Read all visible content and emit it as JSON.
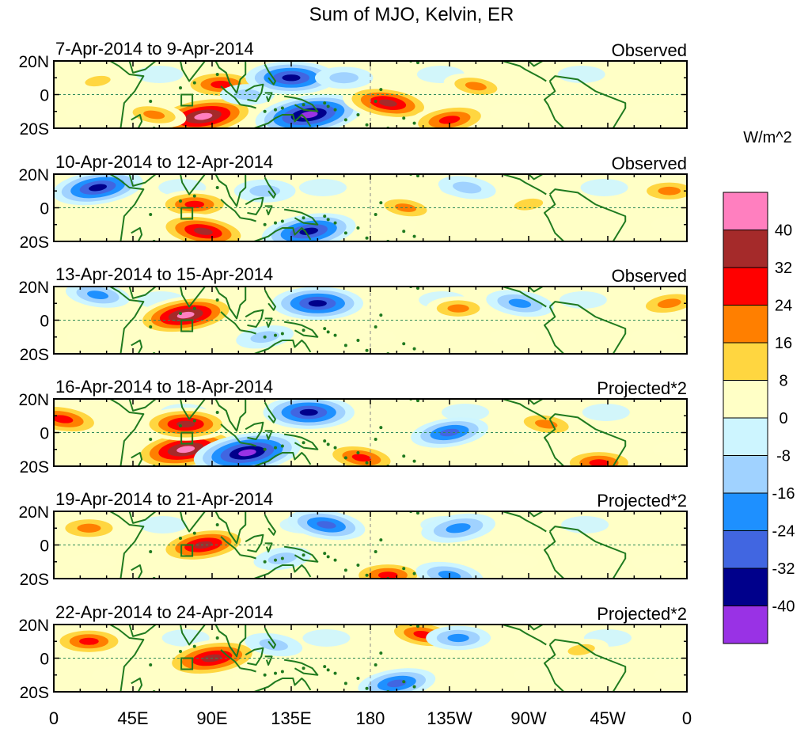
{
  "chart_data": {
    "type": "heatmap",
    "title": "Sum of MJO, Kelvin, ER",
    "units_label": "W/m^2",
    "lat_ticks": [
      "20N",
      "0",
      "20S"
    ],
    "lon_ticks": [
      "0",
      "45E",
      "90E",
      "135E",
      "180",
      "135W",
      "90W",
      "45W",
      "0"
    ],
    "lat_range": [
      -20,
      20
    ],
    "lon_range": [
      0,
      360
    ],
    "colorbar": {
      "labels": [
        "40",
        "32",
        "24",
        "16",
        "8",
        "0",
        "-8",
        "-16",
        "-24",
        "-32",
        "-40"
      ],
      "colors": [
        "#ff7fbf",
        "#a52a2a",
        "#ff0000",
        "#ff7f00",
        "#ffd640",
        "#ffffc6",
        "#cdf5ff",
        "#a0d2ff",
        "#1e90ff",
        "#4166e1",
        "#00008b",
        "#9932e5"
      ]
    },
    "panels": [
      {
        "date_range": "7-Apr-2014 to 9-Apr-2014",
        "type": "Observed",
        "features": [
          {
            "lon": 85,
            "lat": -13,
            "value": 45
          },
          {
            "lon": 95,
            "lat": 6,
            "value": 28
          },
          {
            "lon": 57,
            "lat": -12,
            "value": 18
          },
          {
            "lon": 145,
            "lat": -12,
            "value": -44
          },
          {
            "lon": 135,
            "lat": 10,
            "value": -34
          },
          {
            "lon": 190,
            "lat": -5,
            "value": 34
          },
          {
            "lon": 225,
            "lat": -15,
            "value": 30
          },
          {
            "lon": 165,
            "lat": 10,
            "value": -14
          },
          {
            "lon": 240,
            "lat": 5,
            "value": 18
          },
          {
            "lon": 25,
            "lat": 8,
            "value": 10
          },
          {
            "lon": 110,
            "lat": 0,
            "value": -12
          }
        ]
      },
      {
        "date_range": "10-Apr-2014 to 12-Apr-2014",
        "type": "Observed",
        "features": [
          {
            "lon": 25,
            "lat": 12,
            "value": -34
          },
          {
            "lon": 80,
            "lat": 2,
            "value": 26
          },
          {
            "lon": 85,
            "lat": -14,
            "value": 36
          },
          {
            "lon": 145,
            "lat": -14,
            "value": -36
          },
          {
            "lon": 120,
            "lat": 10,
            "value": -16
          },
          {
            "lon": 200,
            "lat": 0,
            "value": 18
          },
          {
            "lon": 270,
            "lat": 2,
            "value": 14
          },
          {
            "lon": 350,
            "lat": 10,
            "value": 20
          },
          {
            "lon": 235,
            "lat": 12,
            "value": -14
          }
        ]
      },
      {
        "date_range": "13-Apr-2014 to 15-Apr-2014",
        "type": "Observed",
        "features": [
          {
            "lon": 75,
            "lat": 3,
            "value": 42
          },
          {
            "lon": 150,
            "lat": 10,
            "value": -34
          },
          {
            "lon": 25,
            "lat": 15,
            "value": -18
          },
          {
            "lon": 120,
            "lat": -10,
            "value": -14
          },
          {
            "lon": 230,
            "lat": 7,
            "value": 18
          },
          {
            "lon": 265,
            "lat": 10,
            "value": -20
          },
          {
            "lon": 350,
            "lat": 10,
            "value": 22
          }
        ]
      },
      {
        "date_range": "16-Apr-2014 to 18-Apr-2014",
        "type": "Projected*2",
        "features": [
          {
            "lon": 75,
            "lat": -10,
            "value": 45
          },
          {
            "lon": 75,
            "lat": 5,
            "value": 34
          },
          {
            "lon": 5,
            "lat": 8,
            "value": 30
          },
          {
            "lon": 110,
            "lat": -12,
            "value": -44
          },
          {
            "lon": 145,
            "lat": 12,
            "value": -34
          },
          {
            "lon": 175,
            "lat": -15,
            "value": 26
          },
          {
            "lon": 225,
            "lat": 0,
            "value": -26
          },
          {
            "lon": 310,
            "lat": -18,
            "value": 26
          },
          {
            "lon": 280,
            "lat": 5,
            "value": 20
          }
        ]
      },
      {
        "date_range": "19-Apr-2014 to 21-Apr-2014",
        "type": "Projected*2",
        "features": [
          {
            "lon": 85,
            "lat": 0,
            "value": 36
          },
          {
            "lon": 20,
            "lat": 10,
            "value": 22
          },
          {
            "lon": 155,
            "lat": 12,
            "value": -26
          },
          {
            "lon": 230,
            "lat": 10,
            "value": -24
          },
          {
            "lon": 190,
            "lat": -18,
            "value": 26
          },
          {
            "lon": 225,
            "lat": -18,
            "value": -20
          },
          {
            "lon": 130,
            "lat": -8,
            "value": -14
          }
        ]
      },
      {
        "date_range": "22-Apr-2014 to 24-Apr-2014",
        "type": "Projected*2",
        "features": [
          {
            "lon": 90,
            "lat": 0,
            "value": 40
          },
          {
            "lon": 20,
            "lat": 10,
            "value": 26
          },
          {
            "lon": 210,
            "lat": 14,
            "value": 26
          },
          {
            "lon": 195,
            "lat": -15,
            "value": -26
          },
          {
            "lon": 230,
            "lat": 12,
            "value": -18
          },
          {
            "lon": 125,
            "lat": 8,
            "value": -14
          },
          {
            "lon": 300,
            "lat": 5,
            "value": 12
          }
        ]
      }
    ]
  }
}
